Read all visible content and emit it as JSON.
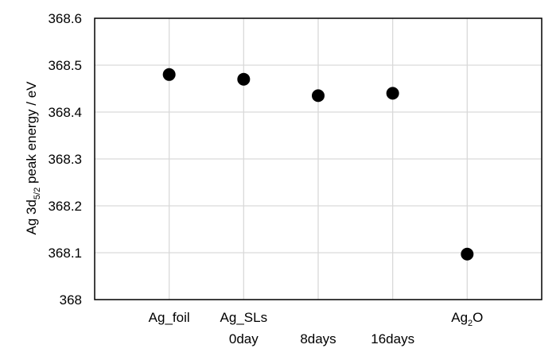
{
  "chart_data": {
    "type": "scatter",
    "title": "",
    "xlabel": "",
    "ylabel": {
      "prefix": "Ag 3d",
      "subscript": "5/2",
      "suffix": " peak energy / eV"
    },
    "ylim": [
      368,
      368.6
    ],
    "y_ticks": [
      "368",
      "368.1",
      "368.2",
      "368.3",
      "368.4",
      "368.5",
      "368.6"
    ],
    "grid": true,
    "categories": [
      {
        "lines": [
          "Ag_foil"
        ]
      },
      {
        "lines": [
          "Ag_SLs",
          "0day"
        ]
      },
      {
        "lines": [
          "",
          "8days"
        ]
      },
      {
        "lines": [
          "",
          "16days"
        ]
      },
      {
        "lines": [
          "Ag"
        ],
        "subscript": "2",
        "suffix": "O"
      }
    ],
    "series": [
      {
        "values": [
          368.48,
          368.47,
          368.435,
          368.44,
          368.097
        ]
      }
    ],
    "marker_color": "#000000",
    "grid_color": "#d9d9d9",
    "axis_color": "#000000"
  }
}
